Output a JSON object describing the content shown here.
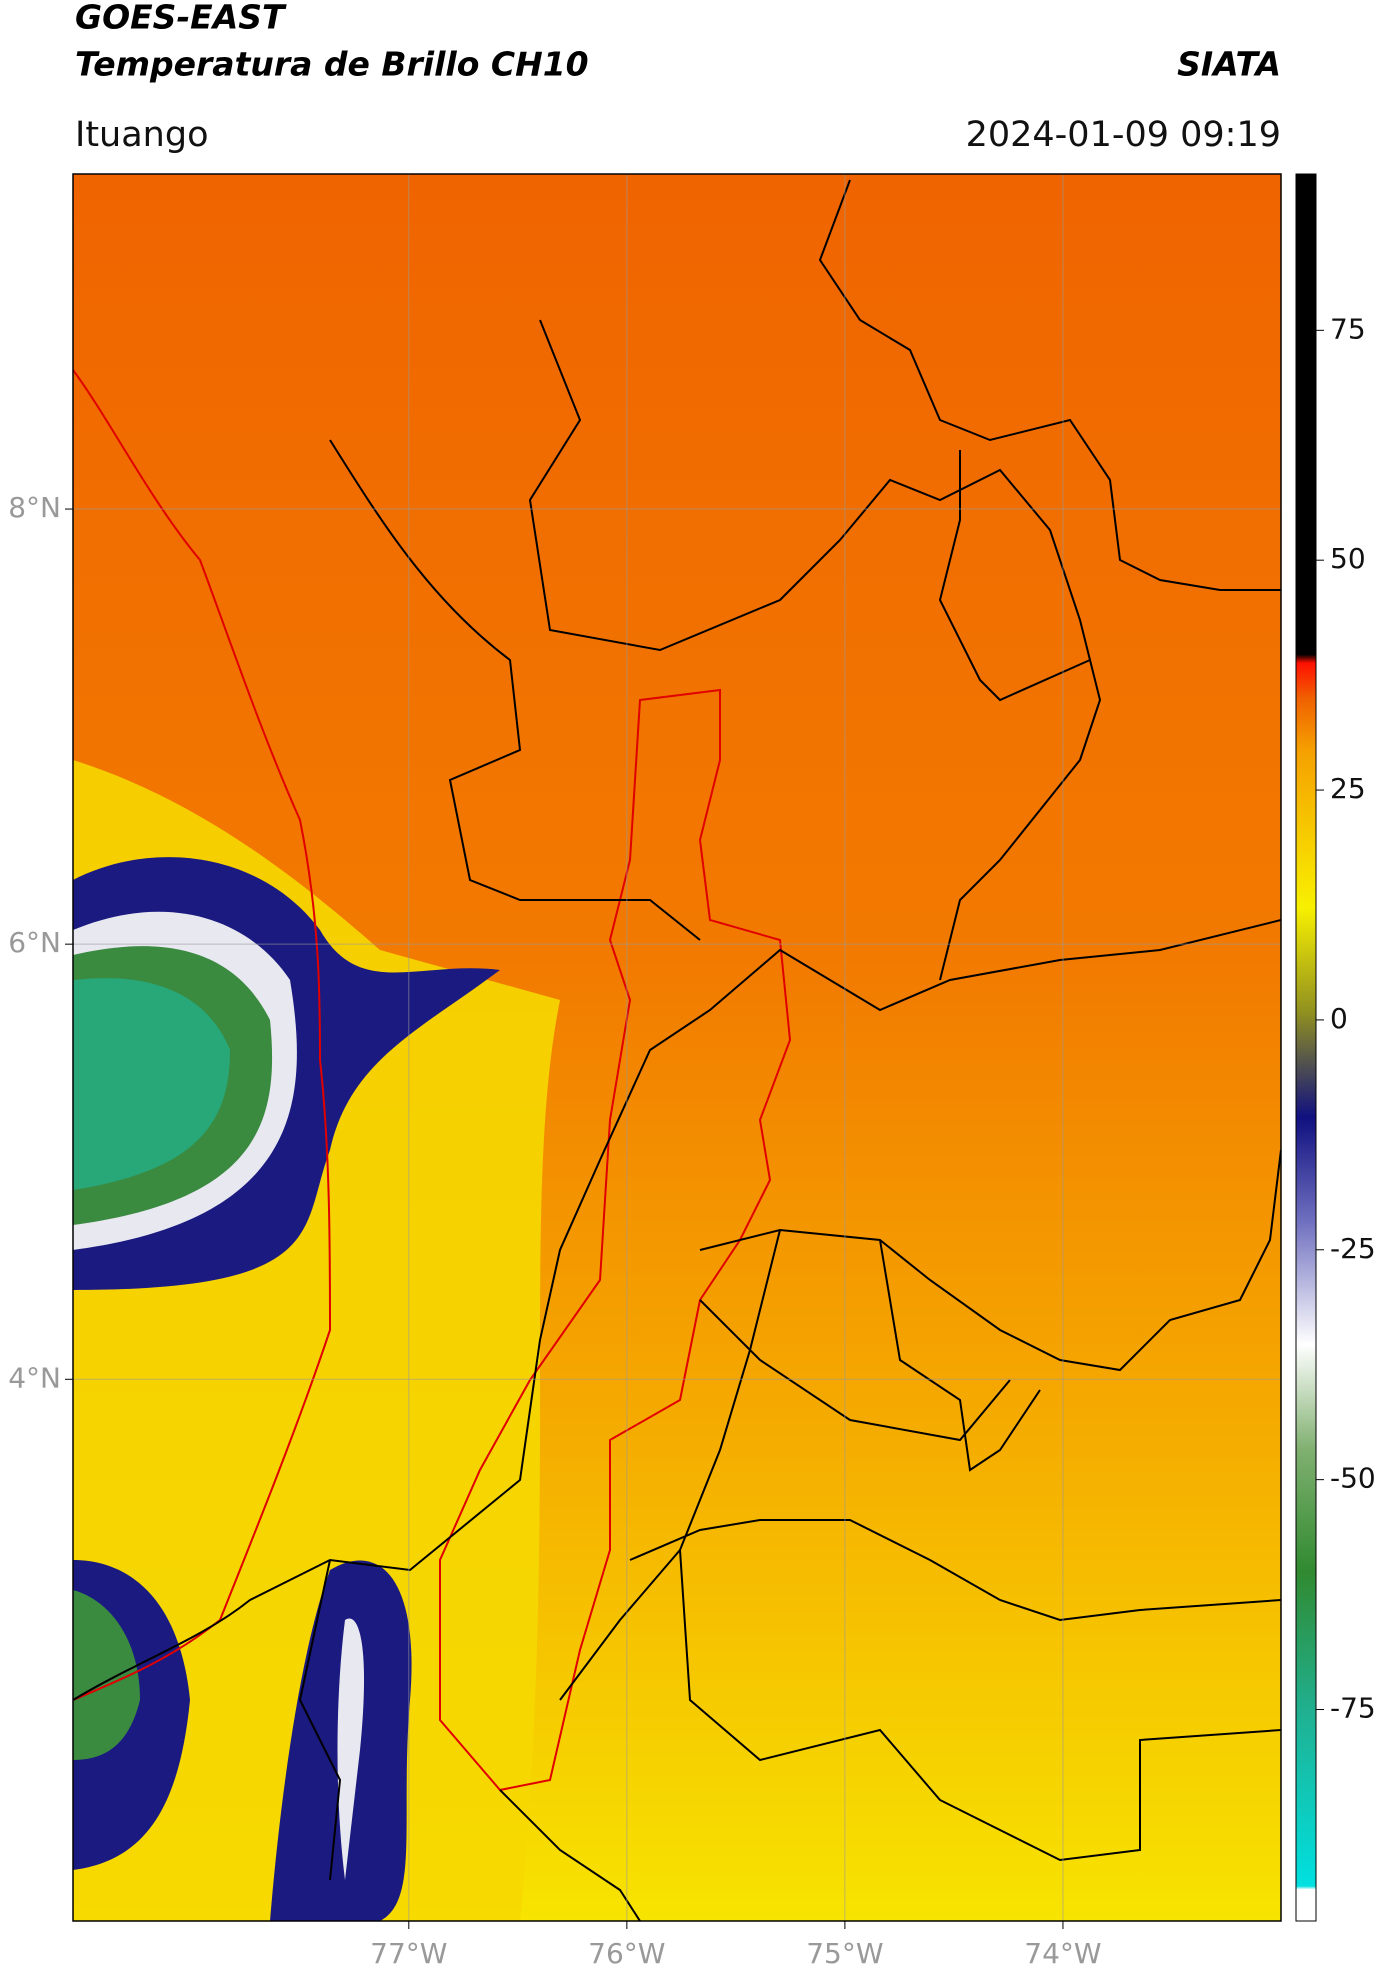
{
  "header": {
    "title": "GOES-EAST",
    "subtitle": "Temperatura de Brillo CH10",
    "brand": "SIATA",
    "location": "Ituango",
    "datetime": "2024-01-09 09:19"
  },
  "map": {
    "lon_range": [
      -78.54,
      -73.0
    ],
    "lat_range": [
      1.51,
      9.54
    ],
    "lat_ticks": [
      {
        "value": 8,
        "label": "8°N"
      },
      {
        "value": 6,
        "label": "6°N"
      },
      {
        "value": 4,
        "label": "4°N"
      }
    ],
    "lon_ticks": [
      {
        "value": -77,
        "label": "77°W"
      },
      {
        "value": -76,
        "label": "76°W"
      },
      {
        "value": -75,
        "label": "75°W"
      },
      {
        "value": -74,
        "label": "74°W"
      }
    ],
    "grid": true
  },
  "colorbar": {
    "clim": [
      -98,
      92
    ],
    "ticks": [
      75,
      50,
      25,
      0,
      -25,
      -50,
      -75
    ]
  }
}
